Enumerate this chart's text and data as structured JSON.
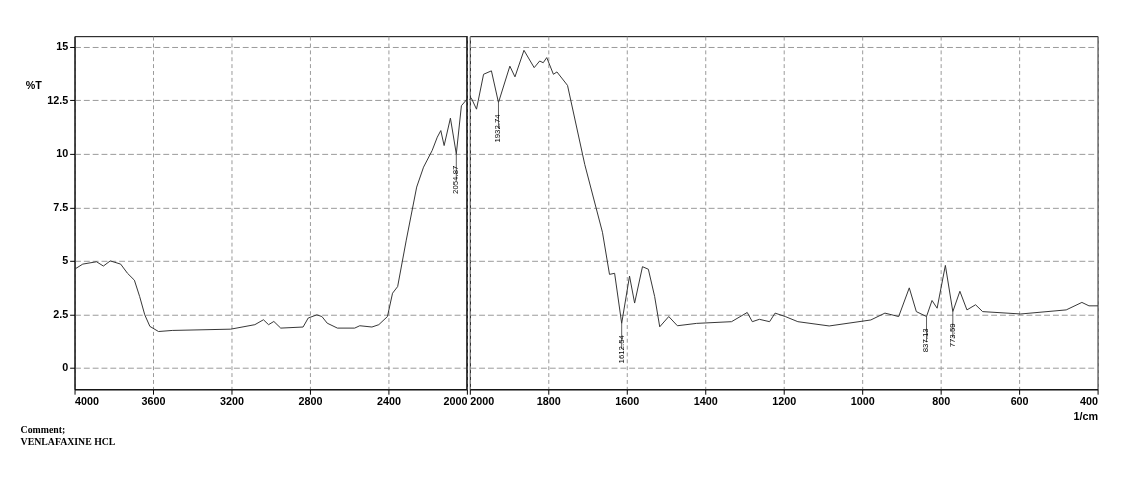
{
  "chart_data": [
    {
      "type": "line",
      "ylabel": "%T",
      "series": [
        {
          "color": "#333333",
          "x": [
            3993,
            3958,
            3888,
            3853,
            3818,
            3765,
            3730,
            3695,
            3668,
            3642,
            3616,
            3572,
            3502,
            3204,
            3081,
            3037,
            3011,
            2984,
            2949,
            2835,
            2809,
            2765,
            2739,
            2712,
            2660,
            2572,
            2546,
            2484,
            2449,
            2405,
            2379,
            2353,
            2309,
            2256,
            2221,
            2177,
            2151,
            2133,
            2116,
            2084,
            2054,
            2028,
            2000
          ],
          "values": [
            4.65,
            4.85,
            4.96,
            4.76,
            5.0,
            4.85,
            4.42,
            4.1,
            3.33,
            2.48,
            1.94,
            1.7,
            1.75,
            1.81,
            2.02,
            2.25,
            2.02,
            2.17,
            1.86,
            1.91,
            2.33,
            2.48,
            2.4,
            2.09,
            1.86,
            1.86,
            1.97,
            1.91,
            2.02,
            2.4,
            3.49,
            3.8,
            5.97,
            8.45,
            9.38,
            10.16,
            10.78,
            11.09,
            10.39,
            11.67,
            10.0,
            12.25,
            12.55
          ]
        }
      ],
      "xlim": [
        4000,
        2000
      ],
      "xticks": [
        4000,
        3600,
        3200,
        2800,
        2400,
        2000
      ],
      "ylim": [
        -1,
        15.5
      ],
      "yticks": [
        0,
        2.5,
        5,
        7.5,
        10,
        12.5,
        15
      ],
      "grid": true,
      "line_style": "solid",
      "marker": "none",
      "ref_lines": [
        {
          "axis": "x",
          "value": 2000,
          "color": "#222222",
          "line_style": "solid"
        }
      ],
      "annotations": [
        {
          "text": "2054.87",
          "x": 2054,
          "y": 10.0
        },
        "Comment;",
        "VENLAFAXINE HCL"
      ]
    },
    {
      "type": "line",
      "xlabel": "1/cm",
      "tick_labels": "x",
      "series": [
        {
          "color": "#333333",
          "x": [
            2000,
            1996,
            1983,
            1965,
            1945,
            1927,
            1898,
            1885,
            1862,
            1836,
            1822,
            1813,
            1804,
            1787,
            1778,
            1751,
            1707,
            1662,
            1644,
            1631,
            1613,
            1593,
            1580,
            1560,
            1545,
            1529,
            1516,
            1493,
            1471,
            1422,
            1333,
            1293,
            1280,
            1262,
            1236,
            1222,
            1196,
            1164,
            1084,
            978,
            942,
            907,
            880,
            862,
            836,
            822,
            809,
            788,
            769,
            751,
            733,
            711,
            693,
            596,
            480,
            440,
            422,
            400
          ],
          "values": [
            12.55,
            12.6,
            12.09,
            13.72,
            13.88,
            12.4,
            14.1,
            13.6,
            14.84,
            14.03,
            14.34,
            14.26,
            14.5,
            13.72,
            13.83,
            13.2,
            9.5,
            6.34,
            4.37,
            4.42,
            2.08,
            4.29,
            3.03,
            4.73,
            4.61,
            3.34,
            1.92,
            2.4,
            1.97,
            2.08,
            2.16,
            2.59,
            2.16,
            2.27,
            2.16,
            2.56,
            2.4,
            2.16,
            1.96,
            2.24,
            2.56,
            2.4,
            3.74,
            2.63,
            2.4,
            3.15,
            2.79,
            4.79,
            2.63,
            3.58,
            2.71,
            2.95,
            2.63,
            2.52,
            2.71,
            3.06,
            2.9,
            2.9
          ]
        }
      ],
      "xlim": [
        2000,
        400
      ],
      "xticks": [
        2000,
        1800,
        1600,
        1400,
        1200,
        1000,
        800,
        600,
        400
      ],
      "ylim": [
        -1,
        15.5
      ],
      "yticks": [
        0,
        2.5,
        5,
        7.5,
        10,
        12.5,
        15
      ],
      "grid": true,
      "line_style": "solid",
      "marker": "none",
      "annotations": [
        {
          "text": "1932.74",
          "x": 1927,
          "y": 12.4
        },
        {
          "text": "1612.54",
          "x": 1613,
          "y": 2.08
        },
        {
          "text": "837.13",
          "x": 836,
          "y": 2.4
        },
        {
          "text": "773.59",
          "x": 769,
          "y": 2.63
        }
      ]
    }
  ]
}
